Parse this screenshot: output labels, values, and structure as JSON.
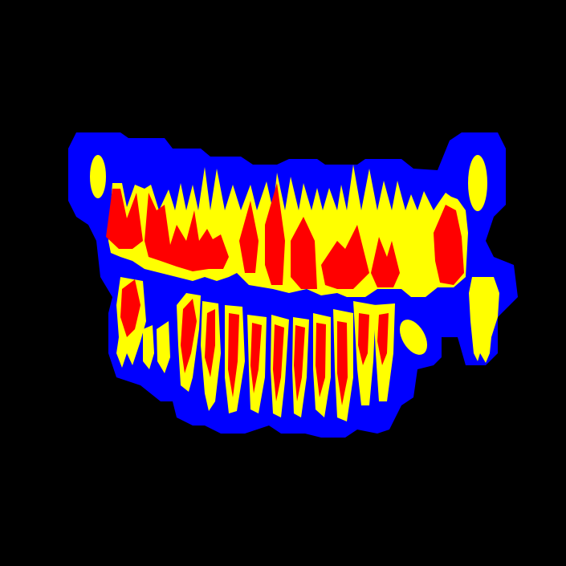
{
  "image": {
    "description_type": "segmentation-mask",
    "background_color": "#000000",
    "classes": [
      {
        "name": "background",
        "color": "#000000"
      },
      {
        "name": "tissue-region",
        "color": "#0000ff"
      },
      {
        "name": "tooth-crown-root",
        "color": "#ffff00"
      },
      {
        "name": "pulp",
        "color": "#ff0000"
      }
    ],
    "upper_teeth_count": 15,
    "lower_teeth_count": 14
  }
}
